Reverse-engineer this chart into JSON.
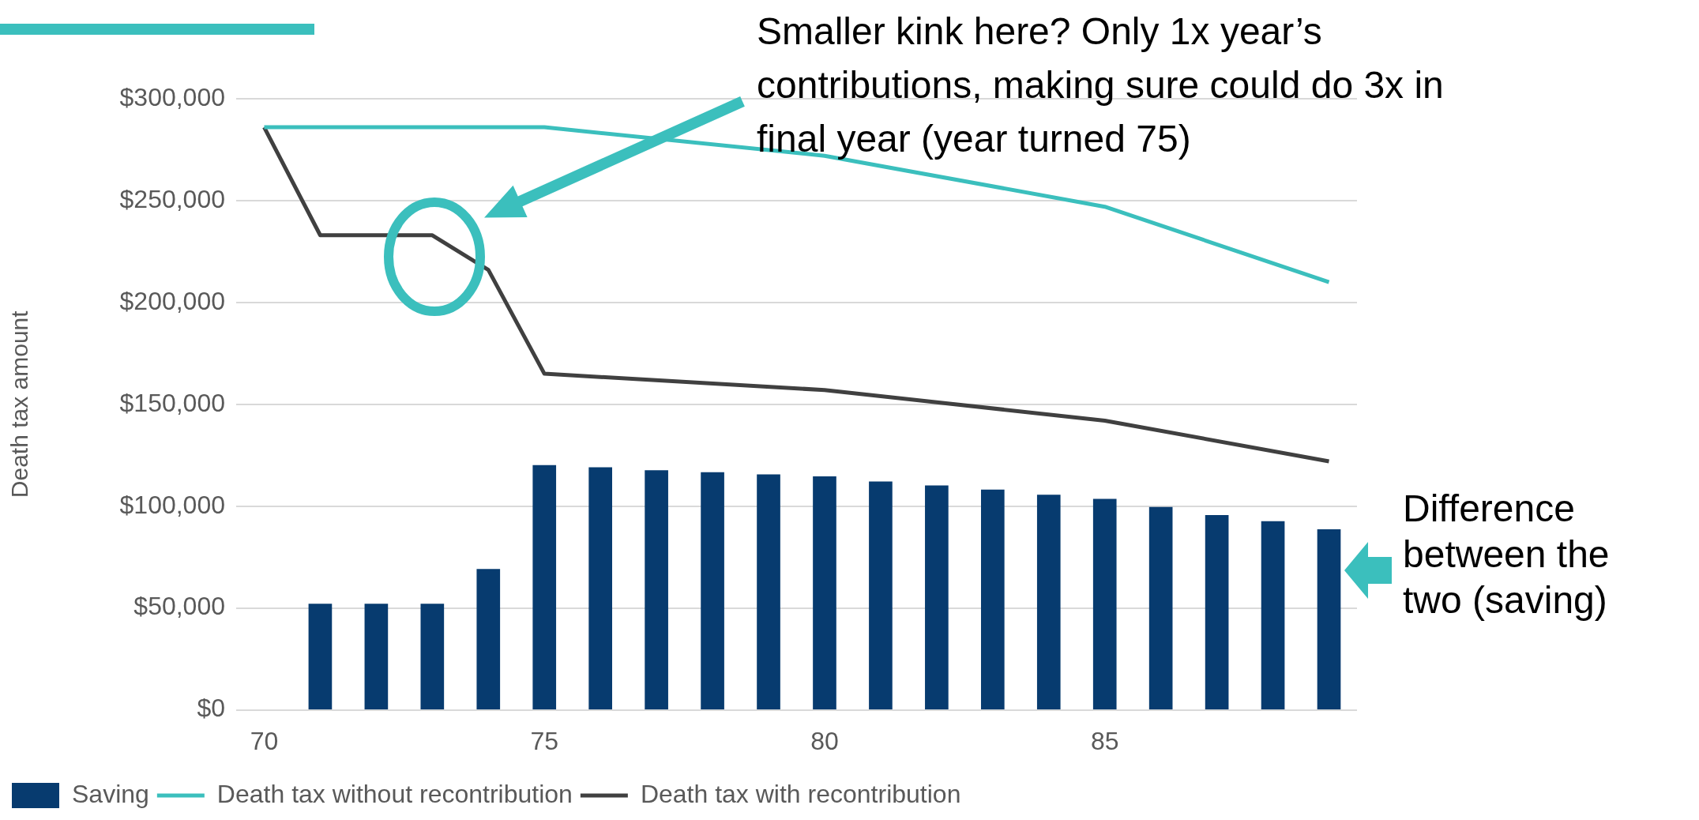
{
  "chart_data": {
    "type": "bar",
    "ylabel": "Death tax amount",
    "xlim": [
      69.5,
      89.5
    ],
    "xticks": [
      70,
      75,
      80,
      85
    ],
    "ylim": [
      0,
      300000
    ],
    "yticks": [
      {
        "value": 0,
        "label": "$0"
      },
      {
        "value": 50000,
        "label": "$50,000"
      },
      {
        "value": 100000,
        "label": "$100,000"
      },
      {
        "value": 150000,
        "label": "$150,000"
      },
      {
        "value": 200000,
        "label": "$200,000"
      },
      {
        "value": 250000,
        "label": "$250,000"
      },
      {
        "value": 300000,
        "label": "$300,000"
      }
    ],
    "grid": "y",
    "legend": "bottom",
    "marker": "none",
    "series": [
      {
        "name": "Saving",
        "color": "#073b6f",
        "x": [
          71,
          72,
          73,
          74,
          75,
          76,
          77,
          78,
          79,
          80,
          81,
          82,
          83,
          84,
          85,
          86,
          87,
          88,
          89
        ],
        "values": [
          52000,
          52000,
          52000,
          69000,
          120000,
          119000,
          117500,
          116500,
          115500,
          114500,
          112000,
          110000,
          108000,
          105500,
          103500,
          99500,
          95500,
          92500,
          88500
        ]
      },
      {
        "name": "Death tax without recontribution",
        "type": "line",
        "color": "#3bbfbd",
        "x": [
          70,
          75,
          80,
          85,
          89
        ],
        "values": [
          286000,
          286000,
          272000,
          247000,
          210000
        ]
      },
      {
        "name": "Death tax with recontribution",
        "type": "line",
        "color": "#404040",
        "x": [
          70,
          71,
          72,
          73,
          74,
          75,
          80,
          85,
          89
        ],
        "values": [
          286000,
          233000,
          233000,
          233000,
          216000,
          165000,
          157000,
          142000,
          122000
        ]
      }
    ],
    "annotations": [
      "Smaller kink here? Only 1x year’s contributions, making sure could do 3x in final year (year turned 75)",
      "Difference between the two (saving)"
    ]
  }
}
